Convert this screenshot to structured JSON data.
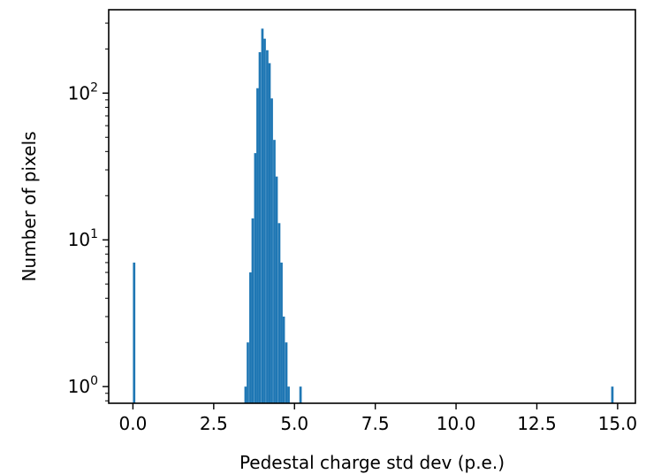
{
  "chart_data": {
    "type": "bar",
    "title": "",
    "xlabel": "Pedestal charge std dev (p.e.)",
    "ylabel": "Number of pixels",
    "yscale": "log",
    "xlim": [
      -0.75,
      15.55
    ],
    "ylim": [
      0.77,
      370
    ],
    "grid": false,
    "bar_color": "#1f77b4",
    "bin_width": 0.074,
    "x_ticks": [
      {
        "value": 0.0,
        "label": "0.0"
      },
      {
        "value": 2.5,
        "label": "2.5"
      },
      {
        "value": 5.0,
        "label": "5.0"
      },
      {
        "value": 7.5,
        "label": "7.5"
      },
      {
        "value": 10.0,
        "label": "10.0"
      },
      {
        "value": 12.5,
        "label": "12.5"
      },
      {
        "value": 15.0,
        "label": "15.0"
      }
    ],
    "y_ticks": [
      {
        "value": 1,
        "base": "10",
        "exp": "0"
      },
      {
        "value": 10,
        "base": "10",
        "exp": "1"
      },
      {
        "value": 100,
        "base": "10",
        "exp": "2"
      }
    ],
    "bins": [
      {
        "x": 0.0,
        "count": 7
      },
      {
        "x": 3.45,
        "count": 1
      },
      {
        "x": 3.52,
        "count": 2
      },
      {
        "x": 3.6,
        "count": 6
      },
      {
        "x": 3.67,
        "count": 14
      },
      {
        "x": 3.75,
        "count": 39
      },
      {
        "x": 3.82,
        "count": 108
      },
      {
        "x": 3.89,
        "count": 190
      },
      {
        "x": 3.97,
        "count": 275
      },
      {
        "x": 4.04,
        "count": 235
      },
      {
        "x": 4.12,
        "count": 196
      },
      {
        "x": 4.19,
        "count": 160
      },
      {
        "x": 4.26,
        "count": 92
      },
      {
        "x": 4.34,
        "count": 48
      },
      {
        "x": 4.41,
        "count": 27
      },
      {
        "x": 4.49,
        "count": 13
      },
      {
        "x": 4.56,
        "count": 7
      },
      {
        "x": 4.63,
        "count": 3
      },
      {
        "x": 4.71,
        "count": 2
      },
      {
        "x": 4.78,
        "count": 1
      },
      {
        "x": 5.15,
        "count": 1
      },
      {
        "x": 14.8,
        "count": 1
      }
    ]
  }
}
